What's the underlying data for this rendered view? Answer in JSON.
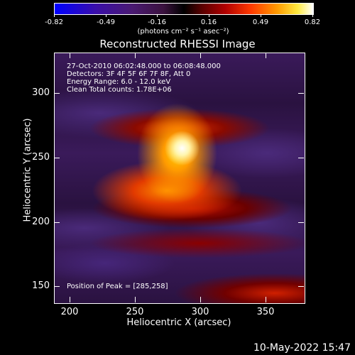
{
  "colorbar": {
    "labels": [
      "-0.82",
      "-0.49",
      "-0.16",
      "0.16",
      "0.49",
      "0.82"
    ],
    "units": "(photons cm⁻² s⁻¹ asec⁻²)"
  },
  "title": "Reconstructed RHESSI Image",
  "info": {
    "line1": "27-Oct-2010 06:02:48.000 to 06:08:48.000",
    "line2": "Detectors: 3F 4F 5F 6F 7F 8F, Att 0",
    "line3": "Energy Range: 6.0 - 12.0 keV",
    "line4": "Clean     Total counts: 1.78E+06"
  },
  "peak_label": "Position of Peak = [285,258]",
  "axes": {
    "xlabel": "Heliocentric X (arcsec)",
    "ylabel": "Heliocentric Y (arcsec)",
    "xticks": [
      "200",
      "250",
      "300",
      "350"
    ],
    "yticks": [
      "300",
      "250",
      "200",
      "150"
    ]
  },
  "timestamp": "10-May-2022 15:47"
}
